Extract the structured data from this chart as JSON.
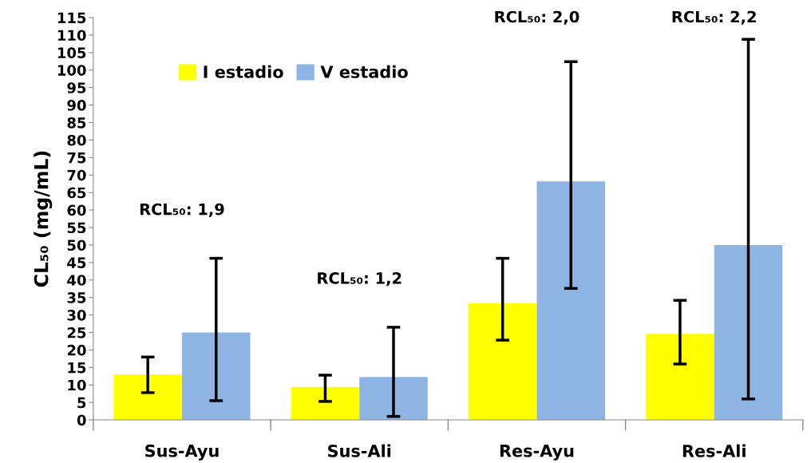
{
  "chart_data": {
    "type": "bar",
    "ylabel": "CL₅₀ (mg/mL)",
    "categories": [
      "Sus-Ayu",
      "Sus-Ali",
      "Res-Ayu",
      "Res-Ali"
    ],
    "series": [
      {
        "name": "I estadio",
        "color": "#ffff00",
        "values": [
          13.0,
          9.4,
          33.3,
          24.6
        ],
        "errors": [
          [
            7.8,
            18.0
          ],
          [
            5.3,
            12.8
          ],
          [
            22.8,
            46.2
          ],
          [
            16.0,
            34.2
          ]
        ]
      },
      {
        "name": "V estadio",
        "color": "#8eb4e3",
        "values": [
          25.0,
          12.3,
          68.2,
          50.0
        ],
        "errors": [
          [
            5.5,
            46.2
          ],
          [
            1.0,
            26.5
          ],
          [
            37.6,
            102.4
          ],
          [
            6.0,
            108.8
          ]
        ]
      }
    ],
    "ylim": [
      0,
      115
    ],
    "yticks": [
      0,
      5,
      10,
      15,
      20,
      25,
      30,
      35,
      40,
      45,
      50,
      55,
      60,
      65,
      70,
      75,
      80,
      85,
      90,
      95,
      100,
      105,
      110,
      115
    ],
    "annotations": [
      "RCL₅₀: 1,9",
      "RCL₅₀: 1,2",
      "RCL₅₀: 2,0",
      "RCL₅₀: 2,2"
    ],
    "legend": "top left",
    "grid": false
  }
}
